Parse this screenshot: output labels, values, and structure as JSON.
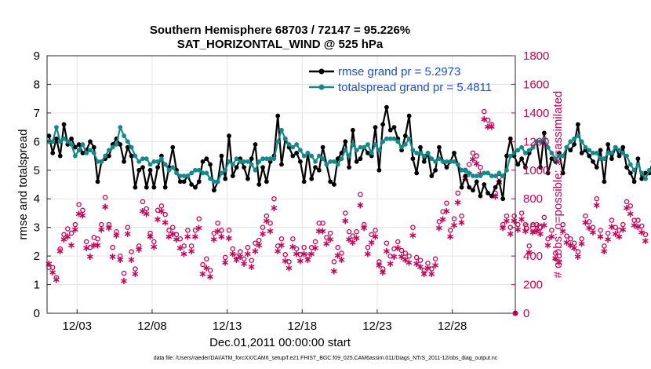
{
  "chart_data": {
    "type": "line",
    "title": "Southern Hemisphere 68703 / 72147 = 95.226%",
    "subtitle": "SAT_HORIZONTAL_WIND @ 525 hPa",
    "xlabel": "Dec.01,2011 00:00:00 start",
    "ylabel": "rmse and totalspread",
    "y2label": "# of obs: o=possible; ∗=assimilated",
    "footnote": "data file: /Users/raeder/DAI/ATM_forcXX/CAM6_setup/f.e21.FHIST_BGC.f09_025.CAM6assim.011/Diags_NTrS_2011-12/obs_diag_output.nc",
    "xlim": [
      1.0,
      32.2
    ],
    "ylim": [
      0,
      9
    ],
    "y2lim": [
      0,
      1800
    ],
    "grid": true,
    "legend_position": "top-right",
    "x_ticks": [
      {
        "value": 3,
        "label": "12/03"
      },
      {
        "value": 8,
        "label": "12/08"
      },
      {
        "value": 13,
        "label": "12/13"
      },
      {
        "value": 18,
        "label": "12/18"
      },
      {
        "value": 23,
        "label": "12/23"
      },
      {
        "value": 28,
        "label": "12/28"
      }
    ],
    "y_ticks": [
      "0",
      "1",
      "2",
      "3",
      "4",
      "5",
      "6",
      "7",
      "8",
      "9"
    ],
    "y2_ticks": [
      "0",
      "200",
      "400",
      "600",
      "800",
      "1000",
      "1200",
      "1400",
      "1600",
      "1800"
    ],
    "x_step": 0.25,
    "series": [
      {
        "name": "rmse grand pr = 5.2973",
        "axis": "left",
        "color": "#000000",
        "marker": "filled-circle",
        "values": [
          6.2,
          5.6,
          6.1,
          5.5,
          6.6,
          5.9,
          6.1,
          5.8,
          5.9,
          5.6,
          5.7,
          6.0,
          5.8,
          4.6,
          5.3,
          5.4,
          5.5,
          5.9,
          6.1,
          5.9,
          5.3,
          5.8,
          5.5,
          4.4,
          5.0,
          5.1,
          4.4,
          5.0,
          4.4,
          5.1,
          5.5,
          4.4,
          5.1,
          5.8,
          5.0,
          4.6,
          4.6,
          4.8,
          4.5,
          4.4,
          4.6,
          5.3,
          5.4,
          5.2,
          4.3,
          4.6,
          5.5,
          4.7,
          6.2,
          4.8,
          5.1,
          5.4,
          5.1,
          4.7,
          5.4,
          5.9,
          4.5,
          5.1,
          4.6,
          5.3,
          5.5,
          6.9,
          5.2,
          6.1,
          5.8,
          5.5,
          5.6,
          5.3,
          4.6,
          5.6,
          4.7,
          5.1,
          5.0,
          5.8,
          5.2,
          4.6,
          4.5,
          5.4,
          5.6,
          6.0,
          5.1,
          6.4,
          5.3,
          5.4,
          5.8,
          5.6,
          5.5,
          6.5,
          5.0,
          6.6,
          7.2,
          6.4,
          6.5,
          6.1,
          5.7,
          6.2,
          6.9,
          5.4,
          4.9,
          5.8,
          5.3,
          5.6,
          4.8,
          5.0,
          5.8,
          5.3,
          5.1,
          5.3,
          5.6,
          5.2,
          4.4,
          4.8,
          4.4,
          4.3,
          4.6,
          4.1,
          4.5,
          4.2,
          4.1,
          4.4,
          4.6,
          4.0,
          5.5,
          6.1,
          5.5,
          5.2,
          5.4,
          5.1,
          5.6,
          5.8,
          6.0,
          5.1,
          6.3,
          4.9,
          5.4,
          5.3,
          5.6,
          4.9,
          5.8,
          5.7,
          5.9,
          6.6,
          5.6,
          5.7,
          5.5,
          5.3,
          5.1,
          5.7,
          4.6,
          5.9,
          5.4,
          5.8,
          5.5,
          5.8,
          5.1,
          4.9,
          4.6,
          5.4,
          4.7,
          4.9,
          4.9,
          5.3
        ]
      },
      {
        "name": "totalspread grand pr = 5.4811",
        "axis": "left",
        "color": "#138a8a",
        "marker": "filled-circle",
        "values": [
          6.0,
          6.0,
          6.5,
          6.0,
          6.1,
          6.0,
          5.9,
          5.5,
          5.7,
          5.9,
          5.6,
          5.7,
          5.6,
          5.3,
          5.3,
          5.5,
          5.7,
          5.8,
          5.9,
          6.5,
          6.2,
          6.0,
          5.8,
          5.5,
          5.3,
          5.4,
          5.4,
          5.2,
          5.3,
          5.3,
          5.4,
          5.2,
          5.0,
          5.1,
          4.9,
          4.8,
          4.8,
          4.8,
          4.9,
          5.0,
          5.0,
          4.9,
          4.9,
          4.7,
          4.6,
          4.6,
          4.9,
          5.0,
          5.3,
          5.2,
          5.4,
          5.3,
          5.3,
          5.3,
          5.2,
          5.0,
          5.3,
          5.4,
          5.4,
          5.4,
          5.4,
          6.0,
          6.4,
          6.1,
          5.9,
          5.8,
          5.9,
          5.7,
          5.5,
          5.6,
          5.5,
          5.3,
          5.5,
          5.4,
          5.2,
          5.3,
          5.3,
          5.2,
          5.4,
          5.7,
          5.5,
          5.9,
          5.7,
          5.8,
          5.8,
          5.9,
          5.6,
          5.9,
          5.7,
          6.0,
          6.1,
          6.1,
          6.1,
          6.0,
          5.8,
          5.9,
          6.1,
          5.7,
          5.6,
          5.6,
          5.5,
          5.6,
          5.4,
          5.3,
          5.4,
          5.3,
          5.3,
          5.3,
          5.3,
          5.2,
          5.0,
          5.0,
          4.9,
          4.8,
          4.8,
          4.8,
          4.9,
          4.9,
          4.8,
          4.8,
          4.9,
          4.8,
          5.0,
          5.5,
          5.6,
          5.7,
          5.8,
          5.6,
          5.7,
          5.8,
          6.0,
          6.0,
          6.1,
          5.8,
          5.6,
          5.4,
          5.5,
          5.5,
          5.8,
          6.0,
          6.1,
          6.2,
          6.0,
          5.8,
          5.7,
          5.6,
          5.6,
          5.4,
          5.4,
          5.6,
          5.6,
          5.8,
          5.7,
          5.6,
          5.5,
          5.2,
          5.0,
          5.2,
          4.9,
          4.7,
          5.0,
          5.0
        ]
      },
      {
        "name": "possible",
        "axis": "right",
        "color": "#cc0055",
        "marker": "open-circle",
        "values": [
          320,
          320,
          250,
          450,
          550,
          590,
          560,
          620,
          760,
          720,
          500,
          460,
          530,
          520,
          620,
          810,
          620,
          460,
          570,
          400,
          280,
          600,
          430,
          310,
          470,
          780,
          730,
          560,
          500,
          720,
          750,
          690,
          580,
          600,
          550,
          520,
          470,
          580,
          470,
          580,
          660,
          340,
          380,
          300,
          560,
          630,
          580,
          390,
          580,
          450,
          400,
          430,
          380,
          460,
          370,
          490,
          510,
          600,
          680,
          630,
          800,
          470,
          520,
          410,
          360,
          520,
          450,
          410,
          460,
          400,
          460,
          500,
          630,
          630,
          530,
          560,
          360,
          460,
          420,
          700,
          570,
          540,
          570,
          830,
          620,
          460,
          550,
          580,
          360,
          310,
          490,
          400,
          450,
          500,
          440,
          420,
          400,
          600,
          390,
          370,
          300,
          350,
          310,
          380,
          640,
          710,
          770,
          580,
          660,
          840,
          680,
          1000,
          1040,
          1120,
          1100,
          1020,
          1410,
          1350,
          1320,
          840,
          950,
          620,
          680,
          600,
          680,
          620,
          700,
          620,
          470,
          620,
          620,
          600,
          670,
          520,
          580,
          420,
          400,
          620,
          540,
          520,
          490,
          430,
          520,
          680,
          640,
          600,
          800,
          580,
          470,
          560,
          650,
          600,
          580,
          620,
          780,
          750,
          650,
          650,
          610,
          550
        ]
      },
      {
        "name": "assimilated",
        "axis": "right",
        "color": "#cc0055",
        "marker": "asterisk",
        "values": [
          350,
          290,
          240,
          440,
          520,
          540,
          480,
          590,
          700,
          690,
          460,
          400,
          480,
          480,
          590,
          750,
          600,
          400,
          550,
          380,
          230,
          560,
          380,
          280,
          450,
          720,
          700,
          540,
          470,
          660,
          720,
          640,
          540,
          560,
          520,
          460,
          420,
          540,
          440,
          540,
          600,
          280,
          320,
          260,
          520,
          580,
          540,
          360,
          530,
          420,
          380,
          400,
          350,
          420,
          330,
          440,
          480,
          560,
          650,
          580,
          740,
          440,
          480,
          370,
          320,
          470,
          420,
          370,
          420,
          380,
          420,
          460,
          580,
          580,
          490,
          520,
          300,
          410,
          380,
          650,
          520,
          500,
          530,
          760,
          600,
          420,
          500,
          540,
          340,
          290,
          440,
          350,
          400,
          460,
          400,
          380,
          360,
          550,
          350,
          330,
          280,
          320,
          280,
          340,
          600,
          660,
          720,
          540,
          620,
          780,
          640,
          950,
          980,
          1080,
          1050,
          980,
          1360,
          1310,
          1310,
          820,
          920,
          600,
          650,
          560,
          650,
          590,
          660,
          580,
          430,
          570,
          580,
          560,
          620,
          480,
          540,
          390,
          360,
          580,
          500,
          480,
          460,
          400,
          490,
          640,
          600,
          570,
          760,
          540,
          440,
          520,
          610,
          560,
          540,
          590,
          740,
          700,
          620,
          610,
          570,
          510
        ]
      }
    ]
  }
}
